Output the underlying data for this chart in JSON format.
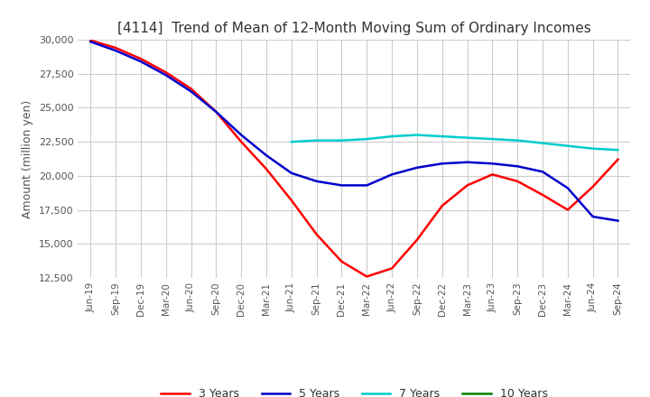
{
  "title": "[4114]  Trend of Mean of 12-Month Moving Sum of Ordinary Incomes",
  "ylabel": "Amount (million yen)",
  "ylim": [
    12500,
    30000
  ],
  "yticks": [
    12500,
    15000,
    17500,
    20000,
    22500,
    25000,
    27500,
    30000
  ],
  "background_color": "#ffffff",
  "grid_color": "#cccccc",
  "x_labels": [
    "Jun-19",
    "Sep-19",
    "Dec-19",
    "Mar-20",
    "Jun-20",
    "Sep-20",
    "Dec-20",
    "Mar-21",
    "Jun-21",
    "Sep-21",
    "Dec-21",
    "Mar-22",
    "Jun-22",
    "Sep-22",
    "Dec-22",
    "Mar-23",
    "Jun-23",
    "Sep-23",
    "Dec-23",
    "Mar-24",
    "Jun-24",
    "Sep-24"
  ],
  "series": {
    "3 Years": {
      "color": "#ff0000",
      "data": [
        [
          "Jun-19",
          29950
        ],
        [
          "Sep-19",
          29400
        ],
        [
          "Dec-19",
          28600
        ],
        [
          "Mar-20",
          27600
        ],
        [
          "Jun-20",
          26400
        ],
        [
          "Sep-20",
          24700
        ],
        [
          "Dec-20",
          22500
        ],
        [
          "Mar-21",
          20500
        ],
        [
          "Jun-21",
          18200
        ],
        [
          "Sep-21",
          15700
        ],
        [
          "Dec-21",
          13700
        ],
        [
          "Mar-22",
          12600
        ],
        [
          "Jun-22",
          13200
        ],
        [
          "Sep-22",
          15300
        ],
        [
          "Dec-22",
          17800
        ],
        [
          "Mar-23",
          19300
        ],
        [
          "Jun-23",
          20100
        ],
        [
          "Sep-23",
          19600
        ],
        [
          "Dec-23",
          18600
        ],
        [
          "Mar-24",
          17500
        ],
        [
          "Jun-24",
          19200
        ],
        [
          "Sep-24",
          21200
        ]
      ]
    },
    "5 Years": {
      "color": "#0000cc",
      "data": [
        [
          "Jun-19",
          29850
        ],
        [
          "Sep-19",
          29200
        ],
        [
          "Dec-19",
          28400
        ],
        [
          "Mar-20",
          27400
        ],
        [
          "Jun-20",
          26200
        ],
        [
          "Sep-20",
          24700
        ],
        [
          "Dec-20",
          23000
        ],
        [
          "Mar-21",
          21500
        ],
        [
          "Jun-21",
          20200
        ],
        [
          "Sep-21",
          19600
        ],
        [
          "Dec-21",
          19300
        ],
        [
          "Mar-22",
          19300
        ],
        [
          "Jun-22",
          20100
        ],
        [
          "Sep-22",
          20600
        ],
        [
          "Dec-22",
          20900
        ],
        [
          "Mar-23",
          21000
        ],
        [
          "Jun-23",
          20900
        ],
        [
          "Sep-23",
          20700
        ],
        [
          "Dec-23",
          20300
        ],
        [
          "Mar-24",
          19100
        ],
        [
          "Jun-24",
          17000
        ],
        [
          "Sep-24",
          16700
        ]
      ]
    },
    "7 Years": {
      "color": "#00cccc",
      "data": [
        [
          "Jun-21",
          22500
        ],
        [
          "Sep-21",
          22600
        ],
        [
          "Dec-21",
          22600
        ],
        [
          "Mar-22",
          22700
        ],
        [
          "Jun-22",
          22900
        ],
        [
          "Sep-22",
          23000
        ],
        [
          "Dec-22",
          22900
        ],
        [
          "Mar-23",
          22800
        ],
        [
          "Jun-23",
          22700
        ],
        [
          "Sep-23",
          22600
        ],
        [
          "Dec-23",
          22400
        ],
        [
          "Mar-24",
          22200
        ],
        [
          "Jun-24",
          22000
        ],
        [
          "Sep-24",
          21900
        ]
      ]
    },
    "10 Years": {
      "color": "#008000",
      "data": []
    }
  }
}
